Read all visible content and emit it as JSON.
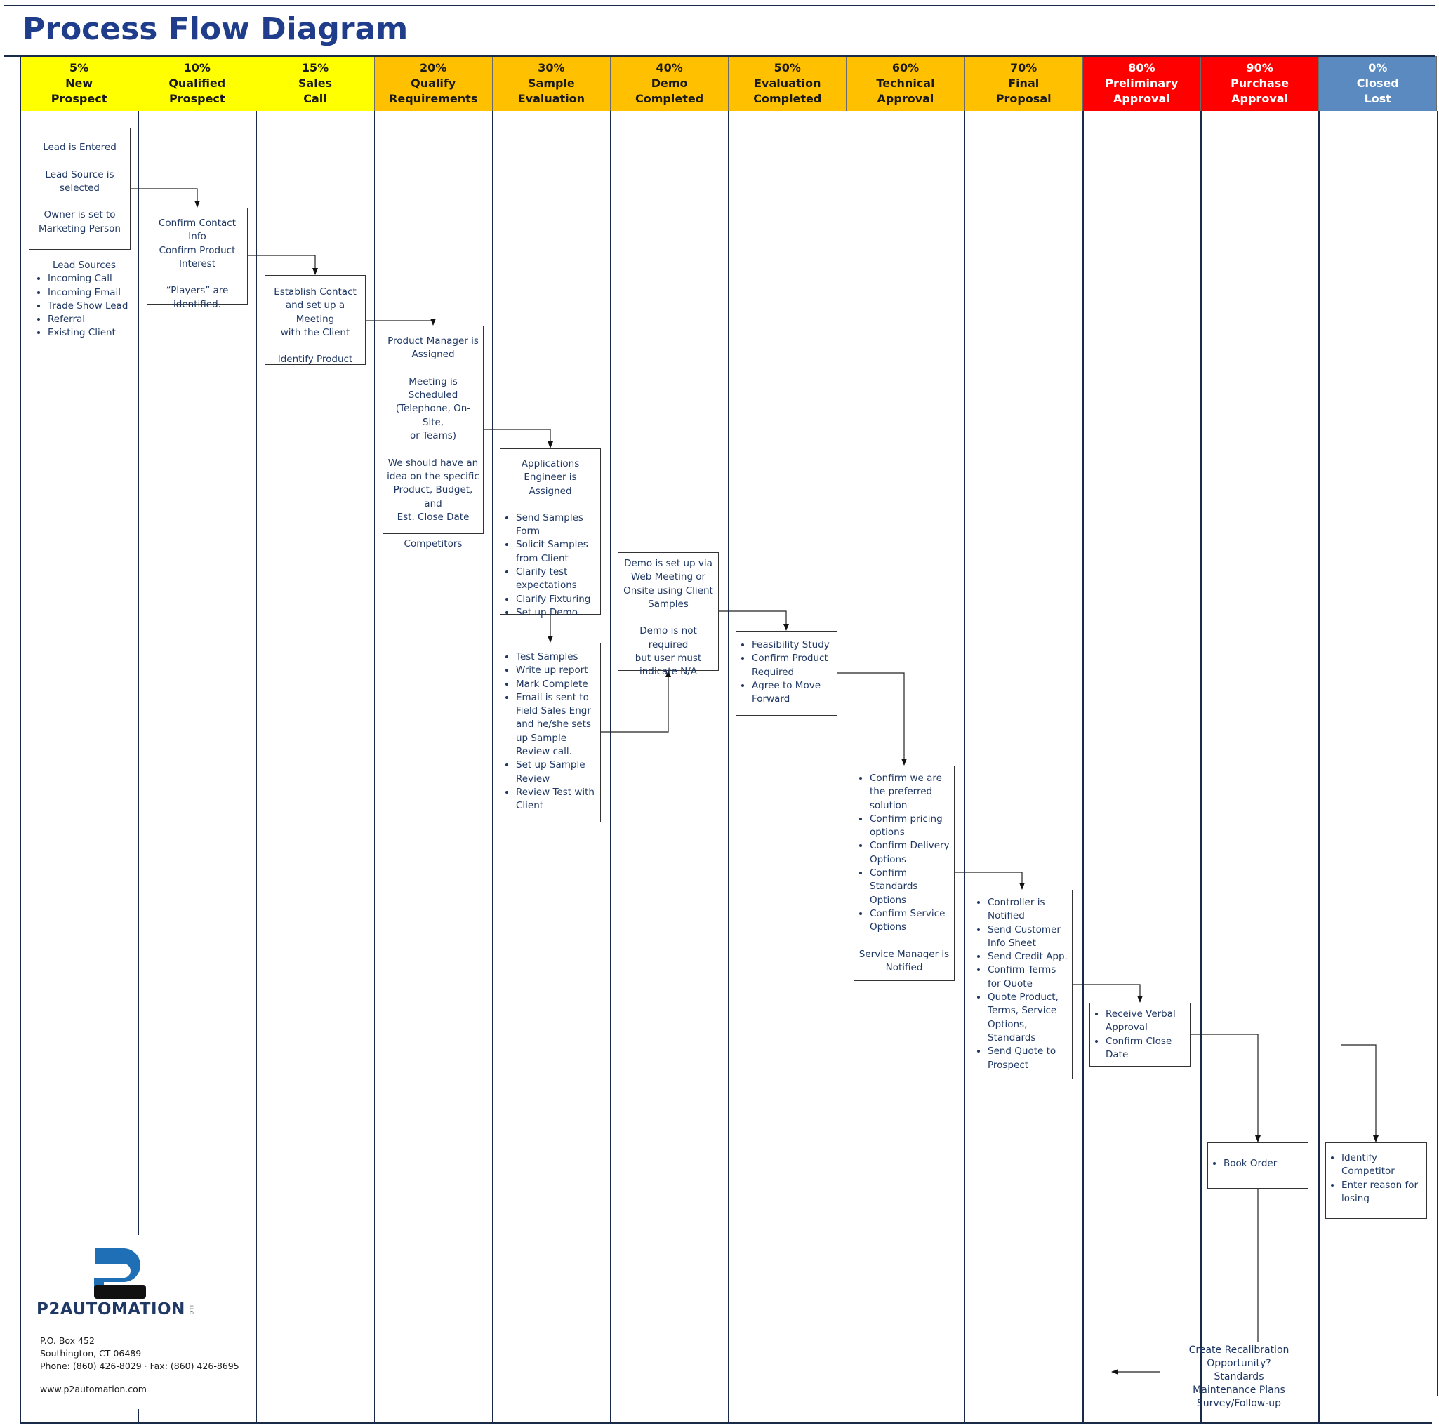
{
  "title": "Process Flow Diagram",
  "stages": [
    {
      "percent": "5%",
      "line1": "New",
      "line2": "Prospect",
      "color": "#ffff00",
      "tone": "yellow"
    },
    {
      "percent": "10%",
      "line1": "Qualified",
      "line2": "Prospect",
      "color": "#ffff00",
      "tone": "yellow"
    },
    {
      "percent": "15%",
      "line1": "Sales",
      "line2": "Call",
      "color": "#ffff00",
      "tone": "yellow"
    },
    {
      "percent": "20%",
      "line1": "Qualify",
      "line2": "Requirements",
      "color": "#ffc000",
      "tone": "orange"
    },
    {
      "percent": "30%",
      "line1": "Sample",
      "line2": "Evaluation",
      "color": "#ffc000",
      "tone": "orange"
    },
    {
      "percent": "40%",
      "line1": "Demo",
      "line2": "Completed",
      "color": "#ffc000",
      "tone": "orange"
    },
    {
      "percent": "50%",
      "line1": "Evaluation",
      "line2": "Completed",
      "color": "#ffc000",
      "tone": "orange"
    },
    {
      "percent": "60%",
      "line1": "Technical",
      "line2": "Approval",
      "color": "#ffc000",
      "tone": "orange"
    },
    {
      "percent": "70%",
      "line1": "Final",
      "line2": "Proposal",
      "color": "#ffc000",
      "tone": "orange"
    },
    {
      "percent": "80%",
      "line1": "Preliminary",
      "line2": "Approval",
      "color": "#ff0000",
      "tone": "red"
    },
    {
      "percent": "90%",
      "line1": "Purchase",
      "line2": "Approval",
      "color": "#ff0000",
      "tone": "red"
    },
    {
      "percent": "0%",
      "line1": "Closed",
      "line2": "Lost",
      "color": "#5b8ac0",
      "tone": "blue"
    }
  ],
  "nodes": {
    "lead_entered": {
      "lines": [
        "Lead is Entered",
        "",
        "Lead Source is",
        "selected",
        "",
        "Owner is set to",
        "Marketing Person"
      ]
    },
    "lead_sources": {
      "title": "Lead Sources",
      "items": [
        "Incoming Call",
        "Incoming Email",
        "Trade Show Lead",
        "Referral",
        "Existing Client"
      ]
    },
    "confirm_contact": {
      "lines": [
        "Confirm Contact Info",
        "Confirm Product",
        "Interest",
        "",
        "“Players” are",
        "identified."
      ]
    },
    "establish_contact": {
      "lines": [
        "Establish Contact",
        "and set up a Meeting",
        "with the Client",
        "",
        "Identify Product"
      ]
    },
    "product_manager": {
      "lines": [
        "Product Manager is",
        "Assigned",
        "",
        "Meeting is",
        "Scheduled",
        "(Telephone, On-Site,",
        "or Teams)",
        "",
        "We should have an",
        "idea on the specific",
        "Product, Budget, and",
        "Est. Close Date",
        "",
        "Competitors"
      ]
    },
    "applications_engineer": {
      "heading": [
        "Applications",
        "Engineer is Assigned"
      ],
      "items": [
        "Send Samples Form",
        "Solicit Samples from Client",
        "Clarify test expectations",
        "Clarify Fixturing",
        "Set up Demo"
      ]
    },
    "test_samples": {
      "items": [
        "Test Samples",
        "Write up report",
        "Mark Complete",
        "Email is sent to Field Sales Engr and he/she sets up Sample Review call.",
        "Set up Sample Review",
        "Review Test with Client"
      ]
    },
    "demo_setup": {
      "lines": [
        "Demo is set up via",
        "Web Meeting or",
        "Onsite using Client",
        "Samples",
        "",
        "Demo is not required",
        "but user must",
        "indicate N/A"
      ]
    },
    "feasibility": {
      "items": [
        "Feasibility Study",
        "Confirm Product Required",
        "Agree to Move Forward"
      ]
    },
    "technical": {
      "items": [
        "Confirm we are the preferred solution",
        "Confirm pricing options",
        "Confirm Delivery Options",
        "Confirm Standards Options",
        "Confirm Service Options"
      ],
      "footer": [
        "Service Manager is",
        "Notified"
      ]
    },
    "final_proposal": {
      "items": [
        "Controller is Notified",
        "Send Customer Info Sheet",
        "Send Credit App.",
        "Confirm Terms for Quote",
        "Quote Product, Terms, Service Options, Standards",
        "Send Quote to Prospect"
      ]
    },
    "verbal_approval": {
      "items": [
        "Receive Verbal Approval",
        "Confirm Close Date"
      ]
    },
    "book_order": {
      "items": [
        "Book Order"
      ]
    },
    "closed_lost": {
      "items": [
        "Identify Competitor",
        "Enter reason for losing"
      ]
    },
    "recalibration": {
      "lines": [
        "Create Recalibration Opportunity?",
        "Standards",
        "Maintenance Plans",
        "Survey/Follow-up"
      ]
    }
  },
  "company": {
    "logo_text": "P2AUTOMATION",
    "logo_suffix": "LLC",
    "address": [
      "P.O. Box 452",
      "Southington, CT 06489",
      "Phone: (860) 426-8029  ·  Fax: (860) 426-8695"
    ],
    "website": "www.p2automation.com"
  }
}
